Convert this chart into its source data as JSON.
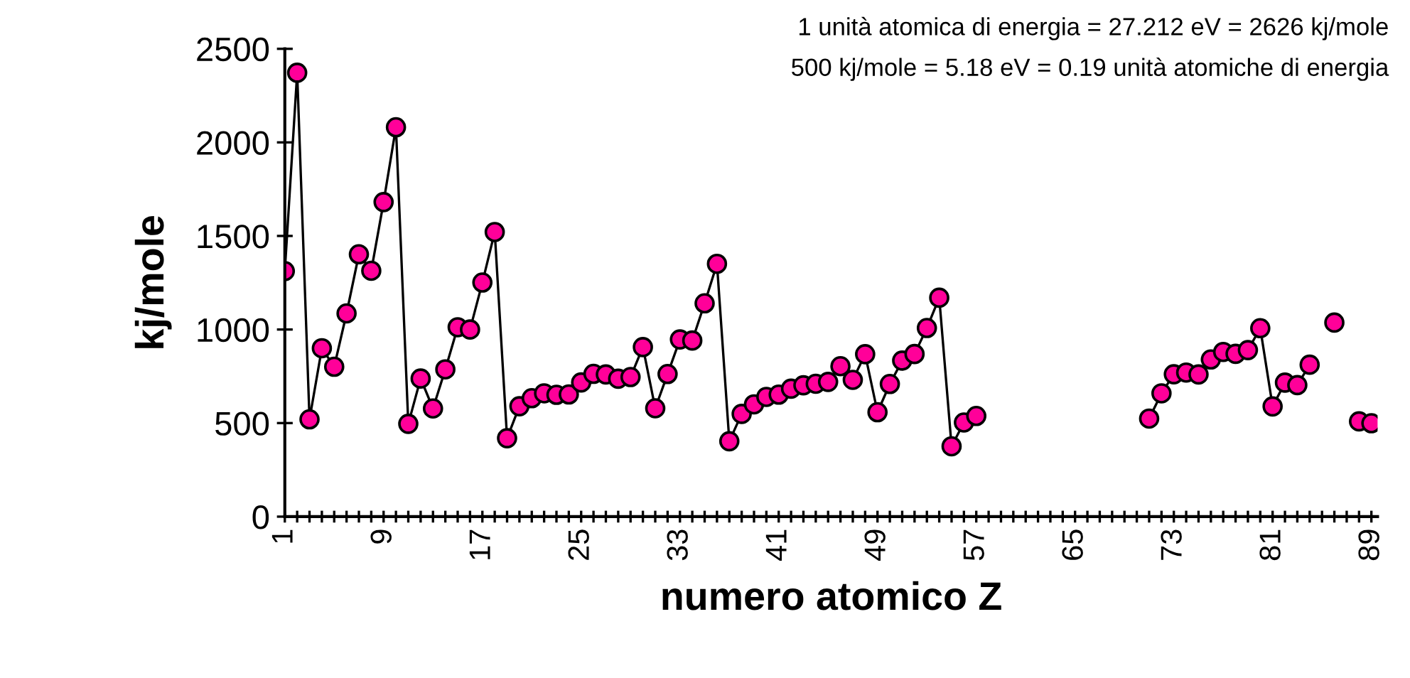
{
  "chart_data": {
    "type": "line",
    "xlabel": "numero atomico Z",
    "ylabel": "kj/mole",
    "annotations": [
      "1 unità atomica di energia = 27.212 eV = 2626 kj/mole",
      "500 kj/mole = 5.18 eV = 0.19 unità atomiche di energia"
    ],
    "x": [
      1,
      2,
      3,
      4,
      5,
      6,
      7,
      8,
      9,
      10,
      11,
      12,
      13,
      14,
      15,
      16,
      17,
      18,
      19,
      20,
      21,
      22,
      23,
      24,
      25,
      26,
      27,
      28,
      29,
      30,
      31,
      32,
      33,
      34,
      35,
      36,
      37,
      38,
      39,
      40,
      41,
      42,
      43,
      44,
      45,
      46,
      47,
      48,
      49,
      50,
      51,
      52,
      53,
      54,
      55,
      56,
      57,
      58,
      59,
      60,
      61,
      62,
      63,
      64,
      65,
      66,
      67,
      68,
      69,
      70,
      71,
      72,
      73,
      74,
      75,
      76,
      77,
      78,
      79,
      80,
      81,
      82,
      83,
      84,
      85,
      86,
      87,
      88,
      89
    ],
    "series": [
      {
        "color": "#ff0099",
        "values": [
          1312,
          2372,
          520,
          900,
          801,
          1086,
          1402,
          1314,
          1681,
          2081,
          496,
          738,
          578,
          787,
          1012,
          1000,
          1251,
          1521,
          419,
          590,
          633,
          659,
          651,
          653,
          717,
          763,
          760,
          737,
          746,
          906,
          579,
          762,
          947,
          941,
          1140,
          1351,
          403,
          549,
          600,
          640,
          652,
          684,
          702,
          710,
          720,
          804,
          731,
          868,
          558,
          709,
          834,
          869,
          1008,
          1170,
          376,
          503,
          538,
          null,
          null,
          null,
          null,
          null,
          null,
          null,
          null,
          null,
          null,
          null,
          null,
          null,
          524,
          659,
          761,
          770,
          760,
          840,
          880,
          870,
          890,
          1007,
          589,
          716,
          703,
          812,
          null,
          1037,
          null,
          509,
          499
        ]
      }
    ],
    "xlim": [
      1,
      89.5
    ],
    "ylim": [
      0,
      2500
    ],
    "yticks": [
      0,
      500,
      1000,
      1500,
      2000,
      2500
    ],
    "xticks": [
      1,
      {
        "value": 2,
        "label": null
      },
      {
        "value": 3,
        "label": null
      },
      {
        "value": 4,
        "label": null
      },
      {
        "value": 5,
        "label": null
      },
      {
        "value": 6,
        "label": null
      },
      {
        "value": 7,
        "label": null
      },
      {
        "value": 8,
        "label": null
      },
      9,
      {
        "value": 10,
        "label": null
      },
      {
        "value": 11,
        "label": null
      },
      {
        "value": 12,
        "label": null
      },
      {
        "value": 13,
        "label": null
      },
      {
        "value": 14,
        "label": null
      },
      {
        "value": 15,
        "label": null
      },
      {
        "value": 16,
        "label": null
      },
      17,
      {
        "value": 18,
        "label": null
      },
      {
        "value": 19,
        "label": null
      },
      {
        "value": 20,
        "label": null
      },
      {
        "value": 21,
        "label": null
      },
      {
        "value": 22,
        "label": null
      },
      {
        "value": 23,
        "label": null
      },
      {
        "value": 24,
        "label": null
      },
      25,
      {
        "value": 26,
        "label": null
      },
      {
        "value": 27,
        "label": null
      },
      {
        "value": 28,
        "label": null
      },
      {
        "value": 29,
        "label": null
      },
      {
        "value": 30,
        "label": null
      },
      {
        "value": 31,
        "label": null
      },
      {
        "value": 32,
        "label": null
      },
      33,
      {
        "value": 34,
        "label": null
      },
      {
        "value": 35,
        "label": null
      },
      {
        "value": 36,
        "label": null
      },
      {
        "value": 37,
        "label": null
      },
      {
        "value": 38,
        "label": null
      },
      {
        "value": 39,
        "label": null
      },
      {
        "value": 40,
        "label": null
      },
      41,
      {
        "value": 42,
        "label": null
      },
      {
        "value": 43,
        "label": null
      },
      {
        "value": 44,
        "label": null
      },
      {
        "value": 45,
        "label": null
      },
      {
        "value": 46,
        "label": null
      },
      {
        "value": 47,
        "label": null
      },
      {
        "value": 48,
        "label": null
      },
      49,
      {
        "value": 50,
        "label": null
      },
      {
        "value": 51,
        "label": null
      },
      {
        "value": 52,
        "label": null
      },
      {
        "value": 53,
        "label": null
      },
      {
        "value": 54,
        "label": null
      },
      {
        "value": 55,
        "label": null
      },
      {
        "value": 56,
        "label": null
      },
      57,
      {
        "value": 58,
        "label": null
      },
      {
        "value": 59,
        "label": null
      },
      {
        "value": 60,
        "label": null
      },
      {
        "value": 61,
        "label": null
      },
      {
        "value": 62,
        "label": null
      },
      {
        "value": 63,
        "label": null
      },
      {
        "value": 64,
        "label": null
      },
      65,
      {
        "value": 66,
        "label": null
      },
      {
        "value": 67,
        "label": null
      },
      {
        "value": 68,
        "label": null
      },
      {
        "value": 69,
        "label": null
      },
      {
        "value": 70,
        "label": null
      },
      {
        "value": 71,
        "label": null
      },
      {
        "value": 72,
        "label": null
      },
      73,
      {
        "value": 74,
        "label": null
      },
      {
        "value": 75,
        "label": null
      },
      {
        "value": 76,
        "label": null
      },
      {
        "value": 77,
        "label": null
      },
      {
        "value": 78,
        "label": null
      },
      {
        "value": 79,
        "label": null
      },
      {
        "value": 80,
        "label": null
      },
      81,
      {
        "value": 82,
        "label": null
      },
      {
        "value": 83,
        "label": null
      },
      {
        "value": 84,
        "label": null
      },
      {
        "value": 85,
        "label": null
      },
      {
        "value": 86,
        "label": null
      },
      {
        "value": 87,
        "label": null
      },
      {
        "value": 88,
        "label": null
      },
      89
    ],
    "marker": "circle",
    "line_style": "solid",
    "grid": false,
    "legend": false
  }
}
